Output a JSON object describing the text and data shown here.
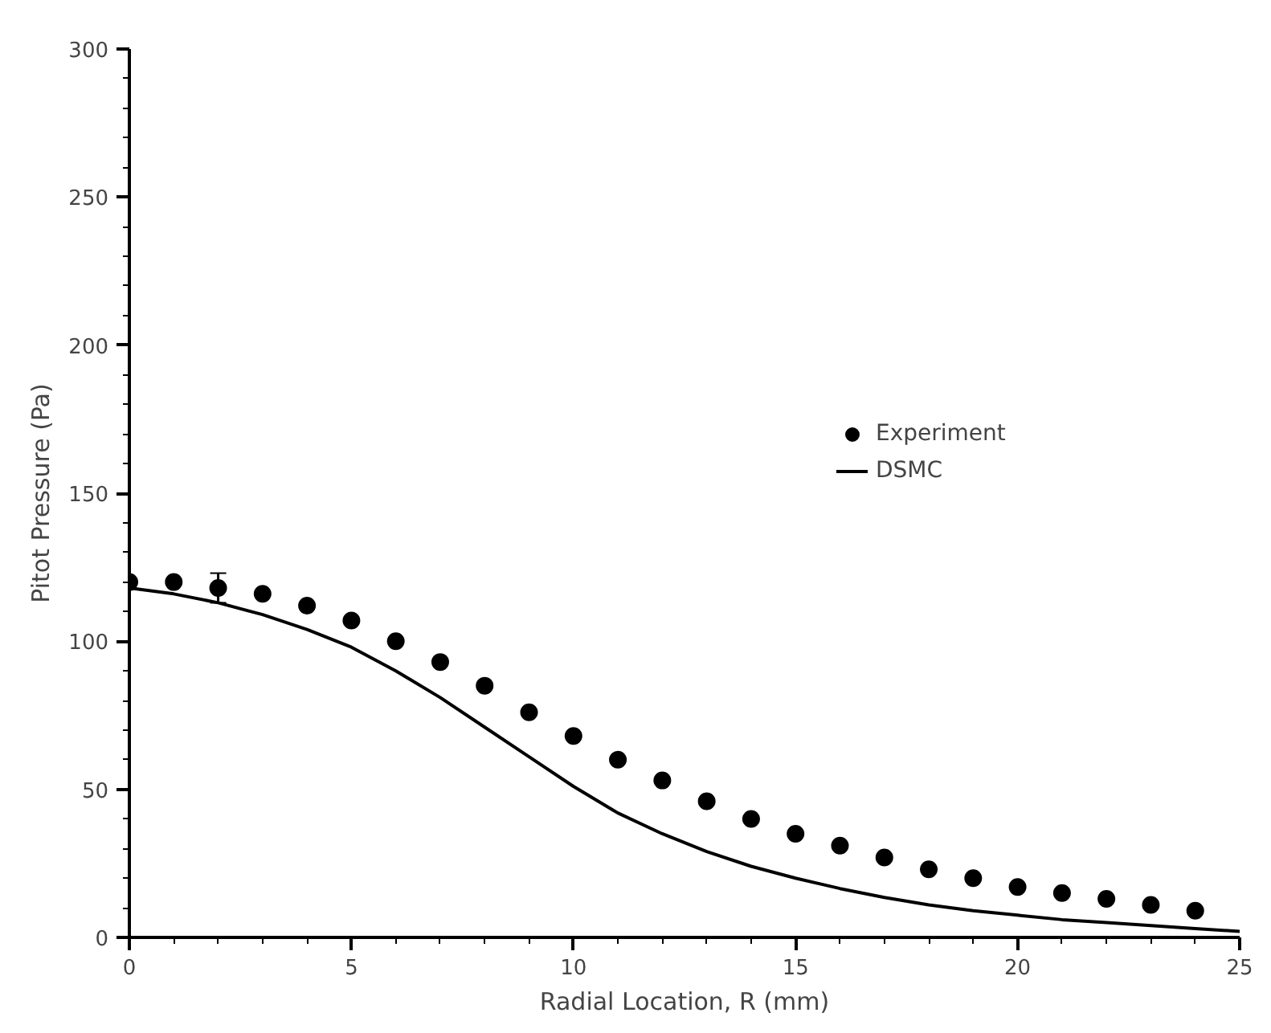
{
  "chart_data": {
    "type": "scatter",
    "xlabel": "Radial Location, R (mm)",
    "ylabel": "Pitot Pressure (Pa)",
    "xlim": [
      0,
      25
    ],
    "ylim": [
      0,
      300
    ],
    "xticks": [
      0,
      5,
      10,
      15,
      20,
      25
    ],
    "yticks": [
      0,
      50,
      100,
      150,
      200,
      250,
      300
    ],
    "grid": false,
    "legend": "right",
    "series": [
      {
        "name": "Experiment",
        "marker": "circle",
        "color": "#000000",
        "x": [
          0,
          1,
          2,
          3,
          4,
          5,
          6,
          7,
          8,
          9,
          10,
          11,
          12,
          13,
          14,
          15,
          16,
          17,
          18,
          19,
          20,
          21,
          22,
          23,
          24
        ],
        "values": [
          120,
          120,
          118,
          116,
          112,
          107,
          100,
          93,
          85,
          76,
          68,
          60,
          53,
          46,
          40,
          35,
          31,
          27,
          23,
          20,
          17,
          15,
          13,
          11,
          9
        ],
        "errors": [
          null,
          null,
          5,
          null,
          null,
          null,
          null,
          null,
          null,
          null,
          null,
          null,
          null,
          null,
          null,
          null,
          null,
          null,
          null,
          null,
          null,
          null,
          null,
          null,
          null
        ]
      },
      {
        "name": "DSMC",
        "type": "line",
        "marker": "none",
        "line_style": "solid",
        "color": "#000000",
        "x": [
          0,
          1,
          2,
          3,
          4,
          5,
          6,
          7,
          8,
          9,
          10,
          11,
          12,
          13,
          14,
          15,
          16,
          17,
          18,
          19,
          20,
          21,
          22,
          23,
          24,
          25
        ],
        "values": [
          118,
          116,
          113,
          109,
          104,
          98,
          90,
          81,
          71,
          61,
          51,
          42,
          35,
          29,
          24,
          20,
          16.5,
          13.5,
          11,
          9,
          7.5,
          6,
          5,
          4,
          3,
          2
        ]
      }
    ]
  }
}
